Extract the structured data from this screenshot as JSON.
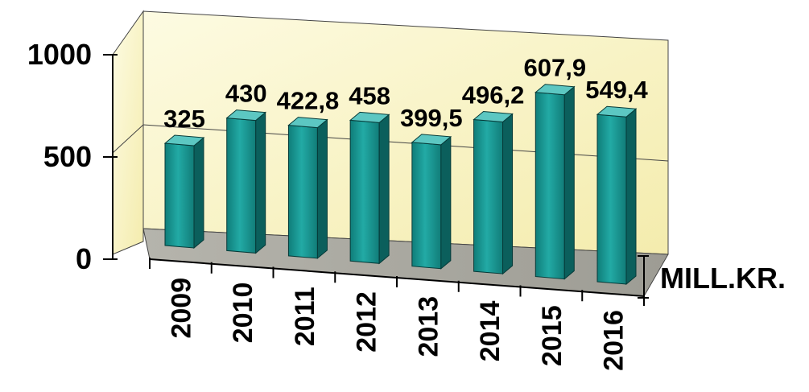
{
  "chart_data": {
    "type": "bar",
    "categories": [
      "2009",
      "2010",
      "2011",
      "2012",
      "2013",
      "2014",
      "2015",
      "2016"
    ],
    "values": [
      325,
      430,
      422.8,
      458,
      399.5,
      496.2,
      607.9,
      549.4
    ],
    "value_labels": [
      "325",
      "430",
      "422,8",
      "458",
      "399,5",
      "496,2",
      "607,9",
      "549,4"
    ],
    "y_ticks": [
      0,
      500,
      1000
    ],
    "y_tick_labels": [
      "0",
      "500",
      "1000"
    ],
    "ylim": [
      0,
      1000
    ],
    "unit_label": "MILL.KR.",
    "style": "3d-column",
    "colors": {
      "bar_front": "#1a9e9a",
      "bar_side": "#0b5f5c",
      "bar_top": "#5cc7c2",
      "back_wall": "#fbf7c9",
      "side_wall": "#f7f0b8",
      "floor": "#aaa9a0"
    }
  }
}
